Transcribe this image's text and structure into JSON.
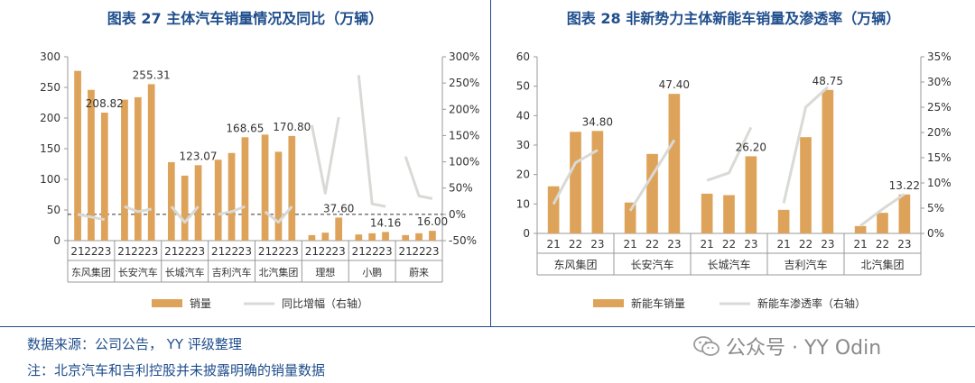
{
  "left_panel": {
    "title": "图表 27 主体汽车销量情况及同比（万辆）"
  },
  "right_panel": {
    "title": "图表 28 非新势力主体新能车销量及渗透率（万辆）"
  },
  "footer": {
    "source": "数据来源：公司公告， YY 评级整理",
    "note": "注：北京汽车和吉利控股并未披露明确的销量数据"
  },
  "watermark": {
    "text": "公众号 · YY Odin",
    "icon": "wechat-icon"
  },
  "colors": {
    "bar": "#dea35a",
    "line": "#d9d9d6",
    "title": "#1f4e8c",
    "axis": "#999999"
  },
  "chart_data": [
    {
      "type": "bar",
      "title": "图表 27 主体汽车销量情况及同比（万辆）",
      "groups": [
        "东风集团",
        "长安汽车",
        "长城汽车",
        "吉利汽车",
        "北汽集团",
        "理想",
        "小鹏",
        "蔚来"
      ],
      "years": [
        "21",
        "22",
        "23"
      ],
      "series": [
        {
          "name": "销量",
          "axis": "left",
          "type": "bar",
          "values": [
            [
              277,
              246,
              208.82
            ],
            [
              230,
              234,
              255.31
            ],
            [
              128,
              106,
              123.07
            ],
            [
              132,
              143,
              168.65
            ],
            [
              173,
              145,
              170.8
            ],
            [
              9,
              13,
              37.6
            ],
            [
              10,
              12,
              14.16
            ],
            [
              9,
              12,
              16.0
            ]
          ],
          "labels": [
            [
              null,
              null,
              "208.82"
            ],
            [
              null,
              null,
              "255.31"
            ],
            [
              null,
              null,
              "123.07"
            ],
            [
              null,
              null,
              "168.65"
            ],
            [
              null,
              null,
              "170.80"
            ],
            [
              null,
              null,
              "37.60"
            ],
            [
              null,
              null,
              "14.16"
            ],
            [
              null,
              null,
              "16.00"
            ]
          ]
        },
        {
          "name": "同比增幅（右轴）",
          "axis": "right",
          "type": "line",
          "values": [
            [
              0,
              -5,
              -10
            ],
            [
              15,
              5,
              10
            ],
            [
              15,
              -15,
              15
            ],
            [
              0,
              5,
              15
            ],
            [
              5,
              -15,
              15
            ],
            [
              170,
              40,
              185
            ],
            [
              265,
              20,
              15
            ],
            [
              110,
              35,
              30
            ]
          ]
        }
      ],
      "ylim_left": [
        0,
        300
      ],
      "yticks_left": [
        0,
        50,
        100,
        150,
        200,
        250,
        300
      ],
      "ylim_right": [
        -50,
        300
      ],
      "yticks_right": [
        "-50%",
        "0%",
        "50%",
        "100%",
        "150%",
        "200%",
        "250%",
        "300%"
      ],
      "reference_line": {
        "axis": "right",
        "value": 0,
        "style": "dashed"
      },
      "legend": [
        "销量",
        "同比增幅（右轴）"
      ],
      "legend_position": "bottom"
    },
    {
      "type": "bar",
      "title": "图表 28 非新势力主体新能车销量及渗透率（万辆）",
      "groups": [
        "东风集团",
        "长安汽车",
        "长城汽车",
        "吉利汽车",
        "北汽集团"
      ],
      "years": [
        "21",
        "22",
        "23"
      ],
      "series": [
        {
          "name": "新能车销量",
          "axis": "left",
          "type": "bar",
          "values": [
            [
              16,
              34.5,
              34.8
            ],
            [
              10.5,
              27,
              47.4
            ],
            [
              13.5,
              13,
              26.2
            ],
            [
              8,
              32.7,
              48.75
            ],
            [
              2.5,
              7,
              13.22
            ]
          ],
          "labels": [
            [
              null,
              null,
              "34.80"
            ],
            [
              null,
              null,
              "47.40"
            ],
            [
              null,
              null,
              "26.20"
            ],
            [
              null,
              null,
              "48.75"
            ],
            [
              null,
              null,
              "13.22"
            ]
          ]
        },
        {
          "name": "新能车渗透率（右轴）",
          "axis": "right",
          "type": "line",
          "values": [
            [
              5.8,
              14,
              16.5
            ],
            [
              4.5,
              11.5,
              18.5
            ],
            [
              10.5,
              12,
              21
            ],
            [
              6,
              25,
              29
            ],
            [
              1.5,
              4.8,
              7.8
            ]
          ]
        }
      ],
      "ylim_left": [
        0,
        60
      ],
      "yticks_left": [
        0,
        10,
        20,
        30,
        40,
        50,
        60
      ],
      "ylim_right": [
        0,
        35
      ],
      "yticks_right": [
        "0%",
        "5%",
        "10%",
        "15%",
        "20%",
        "25%",
        "30%",
        "35%"
      ],
      "legend": [
        "新能车销量",
        "新能车渗透率（右轴）"
      ],
      "legend_position": "bottom"
    }
  ]
}
